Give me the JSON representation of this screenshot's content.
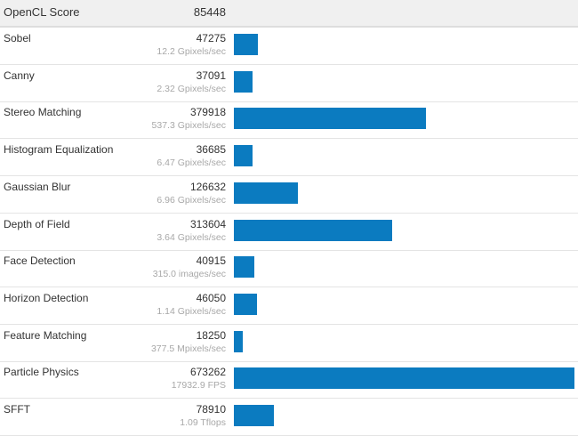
{
  "header": {
    "name": "OpenCL Score",
    "score": "85448"
  },
  "colors": {
    "bar": "#0b7bc0",
    "header_bg": "#f0f0f0"
  },
  "rows": [
    {
      "name": "Sobel",
      "score": 47275,
      "sub": "12.2 Gpixels/sec"
    },
    {
      "name": "Canny",
      "score": 37091,
      "sub": "2.32 Gpixels/sec"
    },
    {
      "name": "Stereo Matching",
      "score": 379918,
      "sub": "537.3 Gpixels/sec"
    },
    {
      "name": "Histogram Equalization",
      "score": 36685,
      "sub": "6.47 Gpixels/sec"
    },
    {
      "name": "Gaussian Blur",
      "score": 126632,
      "sub": "6.96 Gpixels/sec"
    },
    {
      "name": "Depth of Field",
      "score": 313604,
      "sub": "3.64 Gpixels/sec"
    },
    {
      "name": "Face Detection",
      "score": 40915,
      "sub": "315.0 images/sec"
    },
    {
      "name": "Horizon Detection",
      "score": 46050,
      "sub": "1.14 Gpixels/sec"
    },
    {
      "name": "Feature Matching",
      "score": 18250,
      "sub": "377.5 Mpixels/sec"
    },
    {
      "name": "Particle Physics",
      "score": 673262,
      "sub": "17932.9 FPS"
    },
    {
      "name": "SFFT",
      "score": 78910,
      "sub": "1.09 Tflops"
    }
  ]
}
